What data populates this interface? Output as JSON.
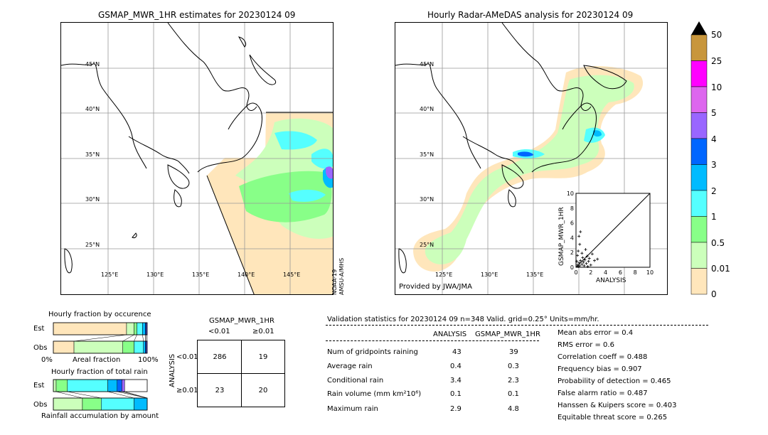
{
  "left_map": {
    "title": "GSMAP_MWR_1HR estimates for 20230124 09",
    "lat_labels": [
      "45°N",
      "40°N",
      "35°N",
      "30°N",
      "25°N"
    ],
    "lon_labels": [
      "125°E",
      "130°E",
      "135°E",
      "140°E",
      "145°E"
    ],
    "satellite_note_1": "NOAA-19",
    "satellite_note_2": "AMSU-A/MHS"
  },
  "right_map": {
    "title": "Hourly Radar-AMeDAS analysis for 20230124 09",
    "lat_labels": [
      "45°N",
      "40°N",
      "35°N",
      "30°N",
      "25°N"
    ],
    "lon_labels": [
      "125°E",
      "130°E",
      "135°E"
    ],
    "provider": "Provided by JWA/JMA"
  },
  "colorbar": {
    "labels": [
      "50",
      "25",
      "10",
      "5",
      "4",
      "3",
      "2",
      "1",
      "0.5",
      "0.01",
      "0"
    ],
    "colors": [
      "#c8963c",
      "#ff00ff",
      "#dd66ee",
      "#9966ff",
      "#0066ff",
      "#00bbff",
      "#55ffff",
      "#88ff88",
      "#ccffbb",
      "#ffe6bb"
    ],
    "over_color": "#000000"
  },
  "chart_data": [
    {
      "type": "scatter",
      "title": "",
      "xlabel": "ANALYSIS",
      "ylabel": "GSMAP_MWR_1HR",
      "xlim": [
        0,
        10
      ],
      "ylim": [
        0,
        10
      ],
      "x_ticks": [
        "0",
        "2",
        "4",
        "6",
        "8",
        "10"
      ],
      "y_ticks": [
        "0",
        "2",
        "4",
        "6",
        "8",
        "10"
      ],
      "points": [
        {
          "x": 0.2,
          "y": 0.3
        },
        {
          "x": 0.3,
          "y": 0.1
        },
        {
          "x": 0.4,
          "y": 0.6
        },
        {
          "x": 0.5,
          "y": 0.2
        },
        {
          "x": 0.6,
          "y": 0.9
        },
        {
          "x": 0.8,
          "y": 0.4
        },
        {
          "x": 0.9,
          "y": 1.3
        },
        {
          "x": 1.0,
          "y": 0.7
        },
        {
          "x": 1.1,
          "y": 0.2
        },
        {
          "x": 1.2,
          "y": 1.0
        },
        {
          "x": 1.4,
          "y": 0.5
        },
        {
          "x": 1.5,
          "y": 1.5
        },
        {
          "x": 1.7,
          "y": 0.8
        },
        {
          "x": 1.8,
          "y": 1.2
        },
        {
          "x": 2.0,
          "y": 0.3
        },
        {
          "x": 2.2,
          "y": 1.8
        },
        {
          "x": 2.5,
          "y": 0.9
        },
        {
          "x": 2.9,
          "y": 1.1
        },
        {
          "x": 0.3,
          "y": 2.2
        },
        {
          "x": 0.5,
          "y": 3.1
        },
        {
          "x": 0.4,
          "y": 4.2
        },
        {
          "x": 0.6,
          "y": 4.8
        },
        {
          "x": 0.2,
          "y": 1.6
        },
        {
          "x": 1.3,
          "y": 2.4
        },
        {
          "x": 0.8,
          "y": 1.9
        },
        {
          "x": 1.6,
          "y": 0.1
        },
        {
          "x": 0.1,
          "y": 0.8
        }
      ],
      "diagonal": true
    },
    {
      "type": "bar",
      "title": "Hourly fraction by occurence",
      "orientation": "horizontal-stacked",
      "categories": [
        "Est",
        "Obs"
      ],
      "xlabel_left": "0%",
      "xlabel_mid": "Areal fraction",
      "xlabel_right": "100%",
      "series": [
        {
          "color": "#ffe6bb",
          "values": [
            0.78,
            0.22
          ]
        },
        {
          "color": "#ccffbb",
          "values": [
            0.08,
            0.52
          ]
        },
        {
          "color": "#88ff88",
          "values": [
            0.03,
            0.12
          ]
        },
        {
          "color": "#55ffff",
          "values": [
            0.06,
            0.1
          ]
        },
        {
          "color": "#00bbff",
          "values": [
            0.03,
            0.02
          ]
        },
        {
          "color": "#0066ff",
          "values": [
            0.01,
            0.01
          ]
        },
        {
          "color": "#9966ff",
          "values": [
            0.01,
            0.01
          ]
        }
      ]
    },
    {
      "type": "bar",
      "title": "Hourly fraction of total rain",
      "orientation": "horizontal-stacked",
      "categories": [
        "Est",
        "Obs"
      ],
      "xlabel_mid": "Rainfall accumulation by amount",
      "series": [
        {
          "color": "#ccffbb",
          "values": [
            0.03,
            0.31
          ]
        },
        {
          "color": "#88ff88",
          "values": [
            0.12,
            0.2
          ]
        },
        {
          "color": "#55ffff",
          "values": [
            0.43,
            0.35
          ]
        },
        {
          "color": "#00bbff",
          "values": [
            0.1,
            0.14
          ]
        },
        {
          "color": "#0066ff",
          "values": [
            0.05,
            0.0
          ]
        },
        {
          "color": "#9966ff",
          "values": [
            0.03,
            0.0
          ]
        }
      ]
    }
  ],
  "contingency": {
    "title": "GSMAP_MWR_1HR",
    "col_lt": "<0.01",
    "col_ge": "≥0.01",
    "row_axis": "ANALYSIS",
    "row_lt": "<0.01",
    "row_ge": "≥0.01",
    "cells": [
      "286",
      "19",
      "23",
      "20"
    ]
  },
  "validation": {
    "header": "Validation statistics for 20230124 09  n=348 Valid. grid=0.25° Units=mm/hr.",
    "col_analysis": "ANALYSIS",
    "col_gsmap": "GSMAP_MWR_1HR",
    "rows": [
      {
        "label": "Num of gridpoints raining",
        "a": "43",
        "g": "39"
      },
      {
        "label": "Average rain",
        "a": "0.4",
        "g": "0.3"
      },
      {
        "label": "Conditional rain",
        "a": "3.4",
        "g": "2.3"
      },
      {
        "label": "Rain volume (mm km²10⁶)",
        "a": "0.1",
        "g": "0.1"
      },
      {
        "label": "Maximum rain",
        "a": "2.9",
        "g": "4.8"
      }
    ],
    "scores": [
      "Mean abs error =    0.4",
      "RMS error =    0.6",
      "Correlation coeff =  0.488",
      "Frequency bias =  0.907",
      "Probability of detection =  0.465",
      "False alarm ratio =  0.487",
      "Hanssen & Kuipers score =  0.403",
      "Equitable threat score =  0.265"
    ]
  }
}
